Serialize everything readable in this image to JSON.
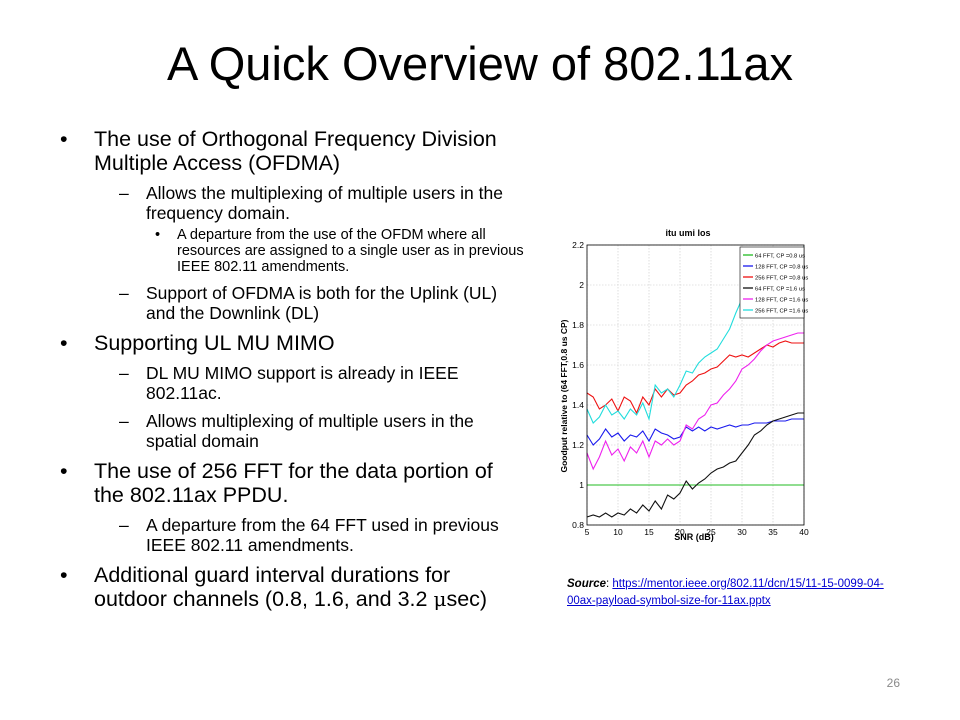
{
  "slide": {
    "title": "A Quick Overview of 802.11ax",
    "page_number": "26"
  },
  "bullets": {
    "b1": "The use of Orthogonal Frequency Division Multiple Access (OFDMA)",
    "b1_s1": "Allows the multiplexing of multiple users in the frequency domain.",
    "b1_s1_t1": "A departure from the use of the OFDM where all resources are assigned to a single user as in previous IEEE 802.11 amendments.",
    "b1_s2": "Support of OFDMA is both for the Uplink (UL) and the Downlink (DL)",
    "b2": "Supporting UL MU MIMO",
    "b2_s1": "DL MU MIMO support is already in IEEE 802.11ac.",
    "b2_s2": "Allows multiplexing of multiple users in the spatial domain",
    "b3": "The use of 256 FFT for the data portion of the 802.11ax PPDU.",
    "b3_s1": "A departure from the 64 FFT used in previous IEEE 802.11 amendments.",
    "b4_text": "Additional guard interval durations for outdoor channels (0.8, 1.6, and 3.2 ",
    "b4_mu": "μ",
    "b4_unit": "sec)",
    "dash": "–",
    "dot": "•"
  },
  "source": {
    "label": "Source",
    "colon": ": ",
    "link": "https://mentor.ieee.org/802.11/dcn/15/11-15-0099-04-00ax-payload-symbol-size-for-11ax.pptx"
  },
  "chart_data": {
    "type": "line",
    "title": "itu umi los",
    "xlabel": "SNR (dB)",
    "ylabel": "Goodput relative to (64 FFT,0.8 us CP)",
    "xlim": [
      5,
      40
    ],
    "ylim": [
      0.8,
      2.2
    ],
    "xticks": [
      5,
      10,
      15,
      20,
      25,
      30,
      35,
      40
    ],
    "yticks": [
      0.8,
      1,
      1.2,
      1.4,
      1.6,
      1.8,
      2,
      2.2
    ],
    "grid": true,
    "legend_position": "top-right",
    "x": [
      5,
      6,
      7,
      8,
      9,
      10,
      11,
      12,
      13,
      14,
      15,
      16,
      17,
      18,
      19,
      20,
      21,
      22,
      23,
      24,
      25,
      26,
      27,
      28,
      29,
      30,
      31,
      32,
      33,
      34,
      35,
      36,
      37,
      38,
      39,
      40
    ],
    "series": [
      {
        "name": "64 FFT, CP =0.8 us",
        "color": "#22bb22",
        "values": [
          1,
          1,
          1,
          1,
          1,
          1,
          1,
          1,
          1,
          1,
          1,
          1,
          1,
          1,
          1,
          1,
          1,
          1,
          1,
          1,
          1,
          1,
          1,
          1,
          1,
          1,
          1,
          1,
          1,
          1,
          1,
          1,
          1,
          1,
          1,
          1
        ]
      },
      {
        "name": "128 FFT, CP =0.8 us",
        "color": "#1a1aee",
        "values": [
          1.25,
          1.2,
          1.23,
          1.28,
          1.24,
          1.26,
          1.22,
          1.25,
          1.24,
          1.27,
          1.22,
          1.28,
          1.26,
          1.25,
          1.23,
          1.24,
          1.29,
          1.27,
          1.29,
          1.27,
          1.29,
          1.28,
          1.29,
          1.3,
          1.29,
          1.3,
          1.3,
          1.31,
          1.31,
          1.31,
          1.32,
          1.32,
          1.32,
          1.33,
          1.33,
          1.33
        ]
      },
      {
        "name": "256 FFT, CP =0.8 us",
        "color": "#ee1111",
        "values": [
          1.46,
          1.44,
          1.38,
          1.4,
          1.43,
          1.37,
          1.44,
          1.42,
          1.36,
          1.44,
          1.4,
          1.48,
          1.44,
          1.48,
          1.45,
          1.46,
          1.5,
          1.52,
          1.55,
          1.56,
          1.58,
          1.59,
          1.62,
          1.65,
          1.64,
          1.65,
          1.64,
          1.66,
          1.68,
          1.7,
          1.69,
          1.71,
          1.72,
          1.71,
          1.71,
          1.71
        ]
      },
      {
        "name": "64 FFT, CP =1.6 us",
        "color": "#111111",
        "values": [
          0.84,
          0.85,
          0.84,
          0.86,
          0.84,
          0.86,
          0.85,
          0.88,
          0.86,
          0.9,
          0.87,
          0.92,
          0.88,
          0.95,
          0.93,
          0.96,
          1.02,
          0.98,
          1.01,
          1.03,
          1.06,
          1.08,
          1.09,
          1.11,
          1.12,
          1.16,
          1.2,
          1.25,
          1.27,
          1.3,
          1.32,
          1.33,
          1.34,
          1.35,
          1.36,
          1.36
        ]
      },
      {
        "name": "128 FFT, CP =1.6 us",
        "color": "#ee22ee",
        "values": [
          1.16,
          1.08,
          1.14,
          1.22,
          1.15,
          1.18,
          1.12,
          1.19,
          1.16,
          1.22,
          1.14,
          1.22,
          1.2,
          1.23,
          1.2,
          1.22,
          1.3,
          1.28,
          1.33,
          1.35,
          1.4,
          1.41,
          1.45,
          1.48,
          1.52,
          1.58,
          1.6,
          1.63,
          1.67,
          1.7,
          1.72,
          1.73,
          1.74,
          1.75,
          1.76,
          1.76
        ]
      },
      {
        "name": "256 FFT, CP =1.6 us",
        "color": "#22dddd",
        "values": [
          1.38,
          1.31,
          1.34,
          1.4,
          1.35,
          1.37,
          1.33,
          1.38,
          1.35,
          1.41,
          1.33,
          1.5,
          1.46,
          1.48,
          1.44,
          1.5,
          1.57,
          1.56,
          1.61,
          1.64,
          1.66,
          1.68,
          1.73,
          1.78,
          1.86,
          1.93,
          1.98,
          2.03,
          2.08,
          2.11,
          2.14,
          2.16,
          2.17,
          2.18,
          2.18,
          2.19
        ]
      }
    ]
  }
}
